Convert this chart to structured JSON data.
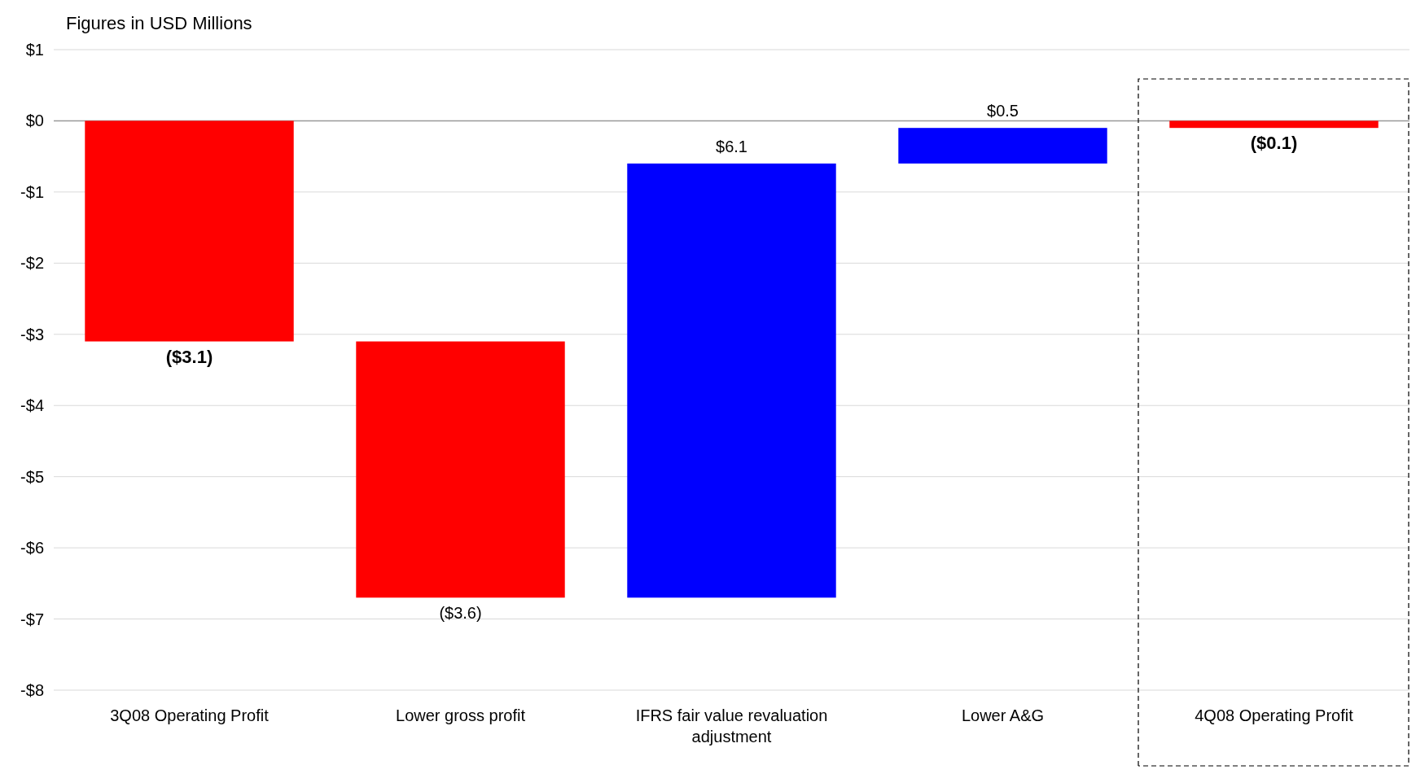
{
  "chart_data": {
    "type": "bar",
    "title": "Figures in USD Millions",
    "categories": [
      "3Q08 Operating Profit",
      "Lower gross profit",
      "IFRS fair value revaluation adjustment",
      "Lower A&G",
      "4Q08 Operating Profit"
    ],
    "values": [
      -3.1,
      -3.6,
      6.1,
      0.5,
      -0.1
    ],
    "base": [
      0,
      -3.1,
      -6.7,
      -0.6,
      0
    ],
    "colors": [
      "#ff0000",
      "#ff0000",
      "#0000ff",
      "#0000ff",
      "#ff0000"
    ],
    "value_labels": [
      "($3.1)",
      "($3.6)",
      "$6.1",
      "$0.5",
      "($0.1)"
    ],
    "ylim": [
      -8,
      1
    ],
    "yticks": [
      {
        "value": 1,
        "label": "$1"
      },
      {
        "value": 0,
        "label": "$0"
      },
      {
        "value": -1,
        "label": "-$1"
      },
      {
        "value": -2,
        "label": "-$2"
      },
      {
        "value": -3,
        "label": "-$3"
      },
      {
        "value": -4,
        "label": "-$4"
      },
      {
        "value": -5,
        "label": "-$5"
      },
      {
        "value": -6,
        "label": "-$6"
      },
      {
        "value": -7,
        "label": "-$7"
      },
      {
        "value": -8,
        "label": "-$8"
      }
    ],
    "grid": "y"
  }
}
